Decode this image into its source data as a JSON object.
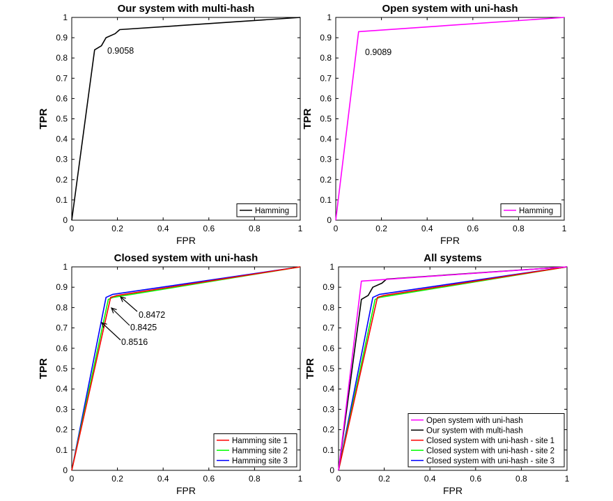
{
  "chart_data": [
    {
      "type": "line",
      "title": "Our system with multi-hash",
      "xlabel": "FPR",
      "ylabel": "TPR",
      "xlim": [
        0,
        1
      ],
      "ylim": [
        0,
        1
      ],
      "xticks": [
        "0",
        "0.2",
        "0.4",
        "0.6",
        "0.8",
        "1"
      ],
      "yticks": [
        "0",
        "0.1",
        "0.2",
        "0.3",
        "0.4",
        "0.5",
        "0.6",
        "0.7",
        "0.8",
        "0.9",
        "1"
      ],
      "legend_position": "bottom-right",
      "series": [
        {
          "name": "Hamming",
          "color": "#000000",
          "x": [
            0,
            0.1,
            0.13,
            0.15,
            0.19,
            0.21,
            1
          ],
          "y": [
            0,
            0.84,
            0.86,
            0.9,
            0.92,
            0.94,
            1
          ]
        }
      ],
      "annotations": [
        {
          "text": "0.9058"
        }
      ]
    },
    {
      "type": "line",
      "title": "Open system with uni-hash",
      "xlabel": "FPR",
      "ylabel": "TPR",
      "xlim": [
        0,
        1
      ],
      "ylim": [
        0,
        1
      ],
      "xticks": [
        "0",
        "0.2",
        "0.4",
        "0.6",
        "0.8",
        "1"
      ],
      "yticks": [
        "0",
        "0.1",
        "0.2",
        "0.3",
        "0.4",
        "0.5",
        "0.6",
        "0.7",
        "0.8",
        "0.9",
        "1"
      ],
      "legend_position": "bottom-right",
      "series": [
        {
          "name": "Hamming",
          "color": "#ff00ff",
          "x": [
            0,
            0.1,
            1
          ],
          "y": [
            0,
            0.93,
            1
          ]
        }
      ],
      "annotations": [
        {
          "text": "0.9089"
        }
      ]
    },
    {
      "type": "line",
      "title": "Closed system with uni-hash",
      "xlabel": "FPR",
      "ylabel": "TPR",
      "xlim": [
        0,
        1
      ],
      "ylim": [
        0,
        1
      ],
      "xticks": [
        "0",
        "0.2",
        "0.4",
        "0.6",
        "0.8",
        "1"
      ],
      "yticks": [
        "0",
        "0.1",
        "0.2",
        "0.3",
        "0.4",
        "0.5",
        "0.6",
        "0.7",
        "0.8",
        "0.9",
        "1"
      ],
      "legend_position": "bottom-right",
      "series": [
        {
          "name": "Hamming site 1",
          "color": "#ff0000",
          "x": [
            0,
            0.17,
            0.2,
            1
          ],
          "y": [
            0,
            0.85,
            0.86,
            1
          ]
        },
        {
          "name": "Hamming site 2",
          "color": "#00ff00",
          "x": [
            0,
            0.16,
            0.18,
            1
          ],
          "y": [
            0,
            0.84,
            0.85,
            1
          ]
        },
        {
          "name": "Hamming site 3",
          "color": "#0000ff",
          "x": [
            0,
            0.15,
            0.18,
            1
          ],
          "y": [
            0,
            0.85,
            0.865,
            1
          ]
        }
      ],
      "annotations": [
        {
          "text": "0.8472"
        },
        {
          "text": "0.8425"
        },
        {
          "text": "0.8516"
        }
      ]
    },
    {
      "type": "line",
      "title": "All systems",
      "xlabel": "FPR",
      "ylabel": "TPR",
      "xlim": [
        0,
        1
      ],
      "ylim": [
        0,
        1
      ],
      "xticks": [
        "0",
        "0.2",
        "0.4",
        "0.6",
        "0.8",
        "1"
      ],
      "yticks": [
        "0",
        "0.1",
        "0.2",
        "0.3",
        "0.4",
        "0.5",
        "0.6",
        "0.7",
        "0.8",
        "0.9",
        "1"
      ],
      "legend_position": "bottom-right",
      "series": [
        {
          "name": "Open system with uni-hash",
          "color": "#ff00ff",
          "x": [
            0,
            0.1,
            1
          ],
          "y": [
            0,
            0.93,
            1
          ]
        },
        {
          "name": "Our system with multi-hash",
          "color": "#000000",
          "x": [
            0,
            0.1,
            0.13,
            0.15,
            0.19,
            0.21,
            1
          ],
          "y": [
            0,
            0.84,
            0.86,
            0.9,
            0.92,
            0.94,
            1
          ]
        },
        {
          "name": "Closed system with uni-hash - site 1",
          "color": "#ff0000",
          "x": [
            0,
            0.17,
            0.2,
            1
          ],
          "y": [
            0,
            0.85,
            0.86,
            1
          ]
        },
        {
          "name": "Closed system with uni-hash - site 2",
          "color": "#00ff00",
          "x": [
            0,
            0.16,
            0.18,
            1
          ],
          "y": [
            0,
            0.84,
            0.85,
            1
          ]
        },
        {
          "name": "Closed system with uni-hash - site 3",
          "color": "#0000ff",
          "x": [
            0,
            0.15,
            0.18,
            1
          ],
          "y": [
            0,
            0.85,
            0.865,
            1
          ]
        }
      ],
      "annotations": []
    }
  ]
}
